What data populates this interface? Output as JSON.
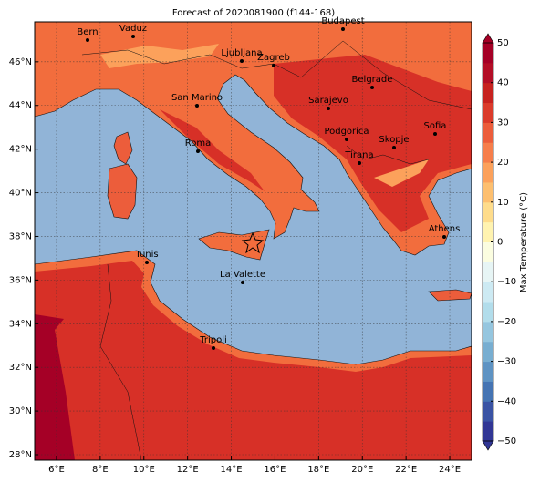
{
  "chart_data": {
    "type": "map",
    "title": "Forecast of 2020081900 (f144-168)",
    "xlim": [
      5,
      25
    ],
    "ylim": [
      27.75,
      47.83
    ],
    "xticks": [
      {
        "value": 6,
        "label": "6°E"
      },
      {
        "value": 8,
        "label": "8°E"
      },
      {
        "value": 10,
        "label": "10°E"
      },
      {
        "value": 12,
        "label": "12°E"
      },
      {
        "value": 14,
        "label": "14°E"
      },
      {
        "value": 16,
        "label": "16°E"
      },
      {
        "value": 18,
        "label": "18°E"
      },
      {
        "value": 20,
        "label": "20°E"
      },
      {
        "value": 22,
        "label": "22°E"
      },
      {
        "value": 24,
        "label": "24°E"
      }
    ],
    "yticks": [
      {
        "value": 28,
        "label": "28°N"
      },
      {
        "value": 30,
        "label": "30°N"
      },
      {
        "value": 32,
        "label": "32°N"
      },
      {
        "value": 34,
        "label": "34°N"
      },
      {
        "value": 36,
        "label": "36°N"
      },
      {
        "value": 38,
        "label": "38°N"
      },
      {
        "value": 40,
        "label": "40°N"
      },
      {
        "value": 42,
        "label": "42°N"
      },
      {
        "value": 44,
        "label": "44°N"
      },
      {
        "value": 46,
        "label": "46°N"
      }
    ],
    "grid": true,
    "cities": [
      "Bern",
      "Vaduz",
      "Budapest",
      "Ljubljana",
      "Zagreb",
      "Belgrade",
      "San Marino",
      "Sarajevo",
      "Podgorica",
      "Sofia",
      "Skopje",
      "Roma",
      "Tirana",
      "Athens",
      "Tunis",
      "La Valette",
      "Tripoli"
    ],
    "colorbar": {
      "label": "Max Temperature (°C)",
      "lim": [
        -50,
        50
      ],
      "ticks": [
        {
          "value": -50,
          "label": "−50"
        },
        {
          "value": -40,
          "label": "−40"
        },
        {
          "value": -30,
          "label": "−30"
        },
        {
          "value": -20,
          "label": "−20"
        },
        {
          "value": -10,
          "label": "−10"
        },
        0,
        10,
        20,
        30,
        40,
        50
      ],
      "colors": [
        "#313695",
        "#3a53a4",
        "#4574b3",
        "#5e93c3",
        "#78aed1",
        "#95c6df",
        "#b2ddeb",
        "#cdeaf3",
        "#e7f5f5",
        "#fbfde0",
        "#fff3b0",
        "#fedc8b",
        "#fdbf6f",
        "#fca15b",
        "#f67e4b",
        "#ec5d3b",
        "#db3b2b",
        "#c7221f",
        "#b30e26",
        "#a50026"
      ]
    }
  }
}
